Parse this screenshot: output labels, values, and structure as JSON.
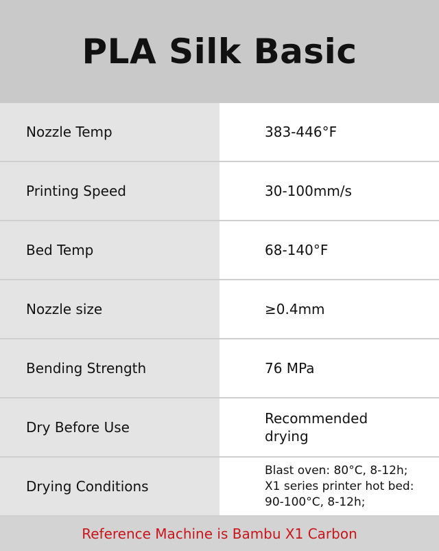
{
  "title": "PLA Silk Basic",
  "rows": [
    {
      "label": "Nozzle Temp",
      "value": "383-446°F"
    },
    {
      "label": "Printing Speed",
      "value": "30-100mm/s"
    },
    {
      "label": "Bed Temp",
      "value": "68-140°F"
    },
    {
      "label": "Nozzle size",
      "value": "≥0.4mm"
    },
    {
      "label": "Bending Strength",
      "value": "76 MPa"
    },
    {
      "label": "Dry Before Use",
      "value_lines": [
        "Recommended",
        "drying"
      ]
    },
    {
      "label": "Drying Conditions",
      "value_lines": [
        "Blast oven: 80°C, 8-12h;",
        "X1 series printer hot bed:",
        "90-100°C, 8-12h;"
      ]
    }
  ],
  "footer": "Reference Machine is Bambu X1 Carbon",
  "colors": {
    "header_bg": "#c9c9c9",
    "label_bg": "#e4e4e4",
    "footer_text": "#c8151b"
  }
}
